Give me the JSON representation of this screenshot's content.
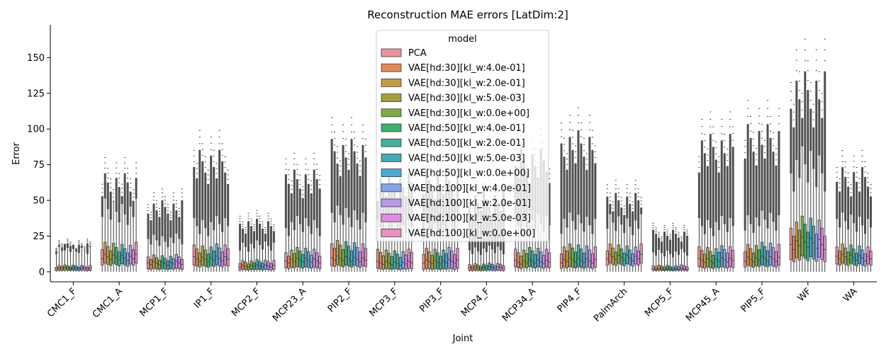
{
  "chart_data": {
    "type": "boxplot",
    "title": "Reconstruction MAE errors [LatDim:2]",
    "xlabel": "Joint",
    "ylabel": "Error",
    "ylim": [
      -7,
      173
    ],
    "yticks": [
      0,
      25,
      50,
      75,
      100,
      125,
      150
    ],
    "grid": false,
    "legend": {
      "title": "model",
      "placement": "top-center",
      "entries": [
        {
          "name": "PCA",
          "color": "#e8939c"
        },
        {
          "name": "VAE[hd:30][kl_w:4.0e-01]",
          "color": "#e08c5a"
        },
        {
          "name": "VAE[hd:30][kl_w:2.0e-01]",
          "color": "#c49b4e"
        },
        {
          "name": "VAE[hd:30][kl_w:5.0e-03]",
          "color": "#a2a047"
        },
        {
          "name": "VAE[hd:30][kl_w:0.0e+00]",
          "color": "#7eab47"
        },
        {
          "name": "VAE[hd:50][kl_w:4.0e-01]",
          "color": "#3fae6e"
        },
        {
          "name": "VAE[hd:50][kl_w:2.0e-01]",
          "color": "#44ae9b"
        },
        {
          "name": "VAE[hd:50][kl_w:5.0e-03]",
          "color": "#45aab2"
        },
        {
          "name": "VAE[hd:50][kl_w:0.0e+00]",
          "color": "#4da9d2"
        },
        {
          "name": "VAE[hd:100][kl_w:4.0e-01]",
          "color": "#8aa3e8"
        },
        {
          "name": "VAE[hd:100][kl_w:2.0e-01]",
          "color": "#bd97ea"
        },
        {
          "name": "VAE[hd:100][kl_w:5.0e-03]",
          "color": "#e08ae6"
        },
        {
          "name": "VAE[hd:100][kl_w:0.0e+00]",
          "color": "#e88fc5"
        }
      ]
    },
    "categories": [
      "CMC1_F",
      "CMC1_A",
      "MCP1_F",
      "IP1_F",
      "MCP2_F",
      "MCP23_A",
      "PIP2_F",
      "MCP3_F",
      "PIP3_F",
      "MCP4_F",
      "MCP34_A",
      "PIP4_F",
      "PalmArch",
      "MCP5_F",
      "MCP45_A",
      "PIP5_F",
      "WF",
      "WA"
    ],
    "box_stats_per_joint": [
      {
        "joint": "CMC1_F",
        "q1": 1,
        "median": 2.5,
        "q3": 4,
        "whisker_high": 16,
        "outlier_max": 23
      },
      {
        "joint": "CMC1_A",
        "q1": 5,
        "median": 10,
        "q3": 17,
        "whisker_high": 42,
        "outlier_max": 80
      },
      {
        "joint": "MCP1_F",
        "q1": 2,
        "median": 6,
        "q3": 10,
        "whisker_high": 22,
        "outlier_max": 58
      },
      {
        "joint": "IP1_F",
        "q1": 4,
        "median": 9,
        "q3": 16,
        "whisker_high": 32,
        "outlier_max": 99
      },
      {
        "joint": "MCP2_F",
        "q1": 1.5,
        "median": 4,
        "q3": 7,
        "whisker_high": 18,
        "outlier_max": 43
      },
      {
        "joint": "MCP23_A",
        "q1": 3,
        "median": 8,
        "q3": 14,
        "whisker_high": 32,
        "outlier_max": 83
      },
      {
        "joint": "PIP2_F",
        "q1": 4,
        "median": 9,
        "q3": 18,
        "whisker_high": 38,
        "outlier_max": 108
      },
      {
        "joint": "MCP3_F",
        "q1": 2,
        "median": 6,
        "q3": 13,
        "whisker_high": 30,
        "outlier_max": 80
      },
      {
        "joint": "PIP3_F",
        "q1": 2,
        "median": 7,
        "q3": 14,
        "whisker_high": 30,
        "outlier_max": 82
      },
      {
        "joint": "MCP4_F",
        "q1": 1,
        "median": 3,
        "q3": 5,
        "whisker_high": 15,
        "outlier_max": 65
      },
      {
        "joint": "MCP34_A",
        "q1": 3,
        "median": 7,
        "q3": 14,
        "whisker_high": 34,
        "outlier_max": 100
      },
      {
        "joint": "PIP4_F",
        "q1": 3,
        "median": 8,
        "q3": 16,
        "whisker_high": 34,
        "outlier_max": 115
      },
      {
        "joint": "PalmArch",
        "q1": 5,
        "median": 10,
        "q3": 16,
        "whisker_high": 33,
        "outlier_max": 64
      },
      {
        "joint": "MCP5_F",
        "q1": 1,
        "median": 2,
        "q3": 4,
        "whisker_high": 13,
        "outlier_max": 34
      },
      {
        "joint": "MCP45_A",
        "q1": 3,
        "median": 8,
        "q3": 15,
        "whisker_high": 32,
        "outlier_max": 112
      },
      {
        "joint": "PIP5_F",
        "q1": 4,
        "median": 9,
        "q3": 17,
        "whisker_high": 35,
        "outlier_max": 120
      },
      {
        "joint": "WF",
        "q1": 9,
        "median": 20,
        "q3": 32,
        "whisker_high": 72,
        "outlier_max": 163
      },
      {
        "joint": "WA",
        "q1": 5,
        "median": 10,
        "q3": 16,
        "whisker_high": 34,
        "outlier_max": 85
      }
    ]
  }
}
